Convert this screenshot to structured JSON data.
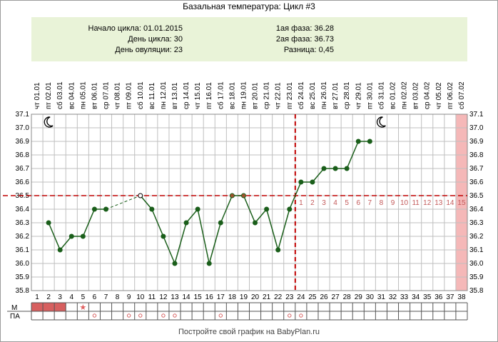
{
  "title": "Базальная температура: Цикл #3",
  "info": {
    "cycle_start": "Начало цикла: 01.01.2015",
    "cycle_day": "День цикла: 30",
    "ovulation_day": "День овуляции: 23",
    "phase1": "1ая фаза: 36.28",
    "phase2": "2ая фаза: 36.73",
    "difference": "Разница: 0,45"
  },
  "footer": "Постройте свой график на BabyPlan.ru",
  "row_labels": {
    "m": "М",
    "pa": "ПА"
  },
  "colors": {
    "line": "#1a5e1a",
    "point": "#1a5e1a",
    "coverline": "#c00000",
    "ovulation_line": "#c00000",
    "grid": "#bfbfbf",
    "last_day_highlight": "#f5b8b8",
    "menstruation": "#d75f5f",
    "pa_mark": "#d75f5f",
    "star": "#e06060",
    "highlight_point": "#a0522d"
  },
  "icons": [
    "moon-icon-start",
    "moon-icon-end"
  ],
  "chart_data": {
    "type": "line",
    "title": "Базальная температура: Цикл #3",
    "xlabel": "",
    "ylabel": "",
    "ylim": [
      35.8,
      37.1
    ],
    "yticks": [
      "37.1",
      "37.0",
      "36.9",
      "36.8",
      "36.7",
      "36.6",
      "36.5",
      "36.4",
      "36.3",
      "36.2",
      "36.1",
      "36.0",
      "35.9",
      "35.8"
    ],
    "grid": true,
    "days": [
      1,
      2,
      3,
      4,
      5,
      6,
      7,
      8,
      9,
      10,
      11,
      12,
      13,
      14,
      15,
      16,
      17,
      18,
      19,
      20,
      21,
      22,
      23,
      24,
      25,
      26,
      27,
      28,
      29,
      30,
      31,
      32,
      33,
      34,
      35,
      36,
      37,
      38
    ],
    "weekdays": [
      "чт",
      "пт",
      "сб",
      "вс",
      "пн",
      "вт",
      "ср",
      "чт",
      "пт",
      "сб",
      "вс",
      "пн",
      "вт",
      "ср",
      "чт",
      "пт",
      "сб",
      "вс",
      "пн",
      "вт",
      "ср",
      "чт",
      "пт",
      "сб",
      "вс",
      "пн",
      "вт",
      "ср",
      "чт",
      "пт",
      "сб",
      "вс",
      "пн",
      "вт",
      "ср",
      "чт",
      "пт",
      "сб"
    ],
    "dates": [
      "01.01",
      "02.01",
      "03.01",
      "04.01",
      "05.01",
      "06.01",
      "07.01",
      "08.01",
      "09.01",
      "10.01",
      "11.01",
      "12.01",
      "13.01",
      "14.01",
      "15.01",
      "16.01",
      "17.01",
      "18.01",
      "19.01",
      "20.01",
      "21.01",
      "22.01",
      "23.01",
      "24.01",
      "25.01",
      "26.01",
      "27.01",
      "28.01",
      "29.01",
      "30.01",
      "31.01",
      "01.02",
      "02.02",
      "03.02",
      "04.02",
      "05.02",
      "06.02",
      "07.02"
    ],
    "series": [
      {
        "points": [
          {
            "day": 2,
            "temp": 36.3
          },
          {
            "day": 3,
            "temp": 36.1
          },
          {
            "day": 4,
            "temp": 36.2
          },
          {
            "day": 5,
            "temp": 36.2
          },
          {
            "day": 6,
            "temp": 36.4
          },
          {
            "day": 7,
            "temp": 36.4
          },
          {
            "day": 10,
            "temp": 36.5,
            "hollow": true
          },
          {
            "day": 11,
            "temp": 36.4
          },
          {
            "day": 12,
            "temp": 36.2
          },
          {
            "day": 13,
            "temp": 36.0
          },
          {
            "day": 14,
            "temp": 36.3
          },
          {
            "day": 15,
            "temp": 36.4
          },
          {
            "day": 16,
            "temp": 36.0
          },
          {
            "day": 17,
            "temp": 36.3
          },
          {
            "day": 18,
            "temp": 36.5,
            "marked": true
          },
          {
            "day": 19,
            "temp": 36.5,
            "marked": true
          },
          {
            "day": 20,
            "temp": 36.3
          },
          {
            "day": 21,
            "temp": 36.4
          },
          {
            "day": 22,
            "temp": 36.1
          },
          {
            "day": 23,
            "temp": 36.4
          },
          {
            "day": 24,
            "temp": 36.6
          },
          {
            "day": 25,
            "temp": 36.6
          },
          {
            "day": 26,
            "temp": 36.7
          },
          {
            "day": 27,
            "temp": 36.7
          },
          {
            "day": 28,
            "temp": 36.7
          },
          {
            "day": 29,
            "temp": 36.9
          },
          {
            "day": 30,
            "temp": 36.9
          }
        ]
      }
    ],
    "gap": {
      "from_day": 7,
      "to_day": 10,
      "style": "dashed"
    },
    "coverline": 36.5,
    "ovulation_day": 23,
    "luteal_day_labels": [
      "1",
      "2",
      "3",
      "4",
      "5",
      "6",
      "7",
      "8",
      "9",
      "10",
      "11",
      "12",
      "13",
      "14",
      "15"
    ],
    "menstruation_days": [
      1,
      2,
      3
    ],
    "star_day": 5,
    "pa_days": [
      6,
      9,
      10,
      12,
      13,
      17,
      23,
      24
    ],
    "highlight_day": 38
  }
}
